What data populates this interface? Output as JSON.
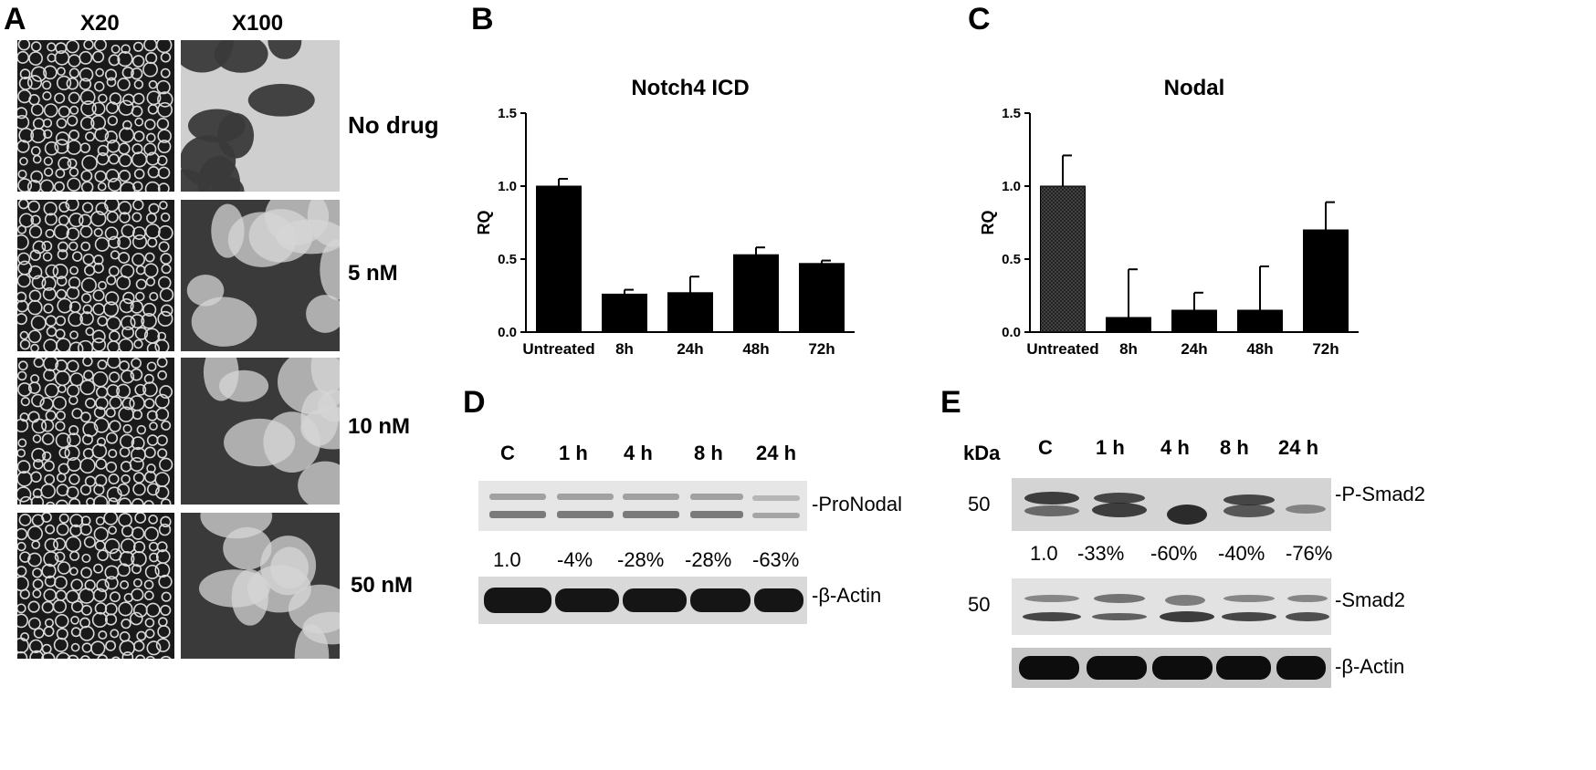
{
  "panels": {
    "A": {
      "letter": "A",
      "col_headers": [
        "X20",
        "X100"
      ],
      "row_labels": [
        "No drug",
        "5 nM",
        "10 nM",
        "50 nM"
      ]
    },
    "B": {
      "letter": "B"
    },
    "C": {
      "letter": "C"
    },
    "D": {
      "letter": "D",
      "lanes": [
        "C",
        "1 h",
        "4 h",
        "8 h",
        "24 h"
      ],
      "band_labels": [
        "-ProNodal",
        "-β-Actin"
      ],
      "quant": [
        "1.0",
        "-4%",
        "-28%",
        "-28%",
        "-63%"
      ]
    },
    "E": {
      "letter": "E",
      "kda_label": "kDa",
      "lanes": [
        "C",
        "1 h",
        "4 h",
        "8 h",
        "24 h"
      ],
      "band_labels": [
        "-P-Smad2",
        "-Smad2",
        "-β-Actin"
      ],
      "marker": "50",
      "quant": [
        "1.0",
        "-33%",
        "-60%",
        "-40%",
        "-76%"
      ]
    }
  },
  "chart_data": [
    {
      "type": "bar",
      "title": "Notch4 ICD",
      "ylabel": "RQ",
      "xlabel": "",
      "categories": [
        "Untreated",
        "8h",
        "24h",
        "48h",
        "72h"
      ],
      "values": [
        1.0,
        0.26,
        0.27,
        0.53,
        0.47
      ],
      "errors": [
        0.05,
        0.03,
        0.11,
        0.05,
        0.02
      ],
      "ylim": [
        0,
        1.5
      ],
      "yticks": [
        "0.0",
        "0.5",
        "1.0",
        "1.5"
      ],
      "colors": [
        "#000000",
        "#000000",
        "#000000",
        "#000000",
        "#000000"
      ],
      "grid": false
    },
    {
      "type": "bar",
      "title": "Nodal",
      "ylabel": "RQ",
      "xlabel": "",
      "categories": [
        "Untreated",
        "8h",
        "24h",
        "48h",
        "72h"
      ],
      "values": [
        1.0,
        0.1,
        0.15,
        0.15,
        0.7
      ],
      "errors": [
        0.21,
        0.33,
        0.12,
        0.3,
        0.19
      ],
      "ylim": [
        0,
        1.5
      ],
      "yticks": [
        "0.0",
        "0.5",
        "1.0",
        "1.5"
      ],
      "colors": [
        "#4a4a4a",
        "#000000",
        "#000000",
        "#000000",
        "#000000"
      ],
      "grid": false
    }
  ]
}
